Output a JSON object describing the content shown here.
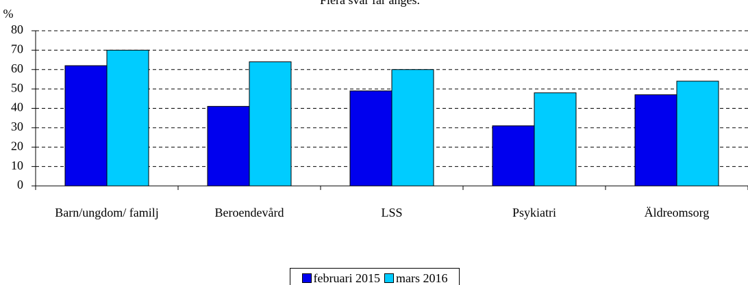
{
  "chart_data": {
    "type": "bar",
    "title": "Flera svar får anges.",
    "y_label": "%",
    "categories": [
      "Barn/ungdom/ familj",
      "Beroendevård",
      "LSS",
      "Psykiatri",
      "Äldreomsorg"
    ],
    "series": [
      {
        "name": "februari 2015",
        "color": "#0000ee",
        "values": [
          62,
          41,
          49,
          31,
          47
        ]
      },
      {
        "name": "mars 2016",
        "color": "#00ccff",
        "values": [
          70,
          64,
          60,
          48,
          54
        ]
      }
    ],
    "ylim": [
      0,
      80
    ],
    "yticks": [
      0,
      10,
      20,
      30,
      40,
      50,
      60,
      70,
      80
    ],
    "grid": true
  }
}
